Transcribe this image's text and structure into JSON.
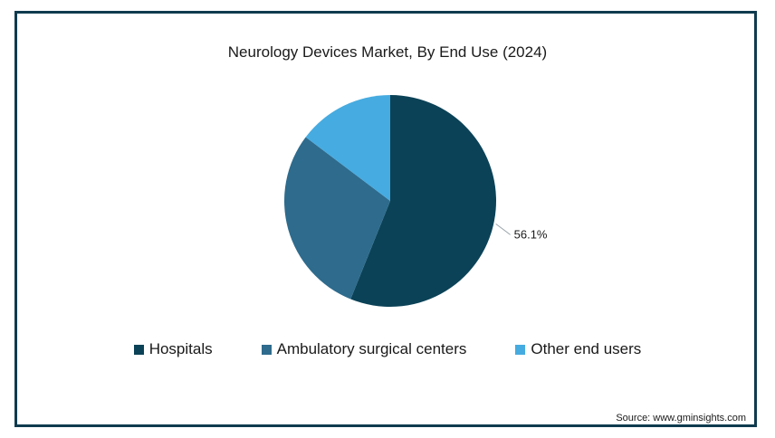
{
  "chart_data": {
    "type": "pie",
    "title": "Neurology Devices Market, By End Use (2024)",
    "slices": [
      {
        "label": "Hospitals",
        "value": 56.1,
        "color": "#0b4257"
      },
      {
        "label": "Ambulatory surgical centers",
        "value": 29.2,
        "color": "#2e6b8d"
      },
      {
        "label": "Other end users",
        "value": 14.7,
        "color": "#46abe0"
      }
    ],
    "data_labels": [
      {
        "slice": 0,
        "text": "56.1%"
      }
    ],
    "legend_position": "bottom"
  },
  "source": "Source: www.gminsights.com"
}
